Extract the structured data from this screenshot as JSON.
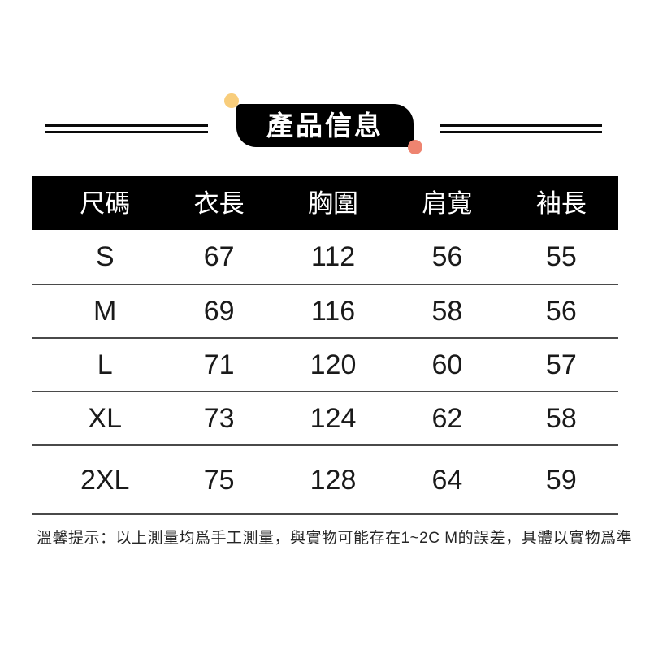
{
  "badge": {
    "title": "產品信息"
  },
  "table": {
    "headers": [
      "尺碼",
      "衣長",
      "胸圍",
      "肩寬",
      "袖長"
    ],
    "rows": [
      [
        "S",
        "67",
        "112",
        "56",
        "55"
      ],
      [
        "M",
        "69",
        "116",
        "58",
        "56"
      ],
      [
        "L",
        "71",
        "120",
        "60",
        "57"
      ],
      [
        "XL",
        "73",
        "124",
        "62",
        "58"
      ],
      [
        "2XL",
        "75",
        "128",
        "64",
        "59"
      ]
    ]
  },
  "note": {
    "label": "溫馨提示：",
    "text": "以上測量均爲手工測量，與實物可能存在1~2C M的誤差，具體以實物爲準"
  },
  "colors": {
    "accent_yellow_dot": "#f8cd7b",
    "accent_coral_dot": "#ee8470",
    "header_bar": "#000000",
    "divider": "#4a4a4a"
  },
  "chart_data": {
    "type": "table",
    "title": "產品信息",
    "columns": [
      "尺碼",
      "衣長",
      "胸圍",
      "肩寬",
      "袖長"
    ],
    "rows": [
      {
        "尺碼": "S",
        "衣長": 67,
        "胸圍": 112,
        "肩寬": 56,
        "袖長": 55
      },
      {
        "尺碼": "M",
        "衣長": 69,
        "胸圍": 116,
        "肩寬": 58,
        "袖長": 56
      },
      {
        "尺碼": "L",
        "衣長": 71,
        "胸圍": 120,
        "肩寬": 60,
        "袖長": 57
      },
      {
        "尺碼": "XL",
        "衣長": 73,
        "胸圍": 124,
        "肩寬": 62,
        "袖長": 58
      },
      {
        "尺碼": "2XL",
        "衣長": 75,
        "胸圍": 128,
        "肩寬": 64,
        "袖長": 59
      }
    ],
    "footnote": "溫馨提示：以上測量均爲手工測量，與實物可能存在1~2C M的誤差，具體以實物爲準"
  }
}
